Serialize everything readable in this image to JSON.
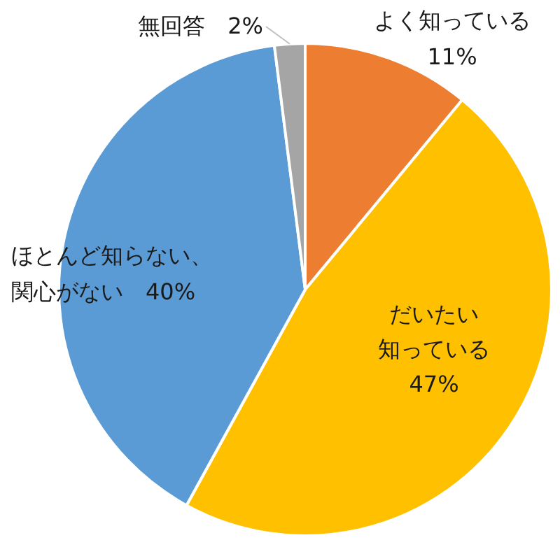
{
  "chart_data": {
    "type": "pie",
    "categories": [
      "よく知っている",
      "だいたい知っている",
      "ほとんど知らない、関心がない",
      "無回答"
    ],
    "values": [
      11,
      47,
      40,
      2
    ],
    "colors": [
      "#ed7d31",
      "#ffc000",
      "#5b9bd5",
      "#a5a5a5"
    ],
    "value_labels": [
      "11%",
      "47%",
      "40%",
      "2%"
    ]
  }
}
